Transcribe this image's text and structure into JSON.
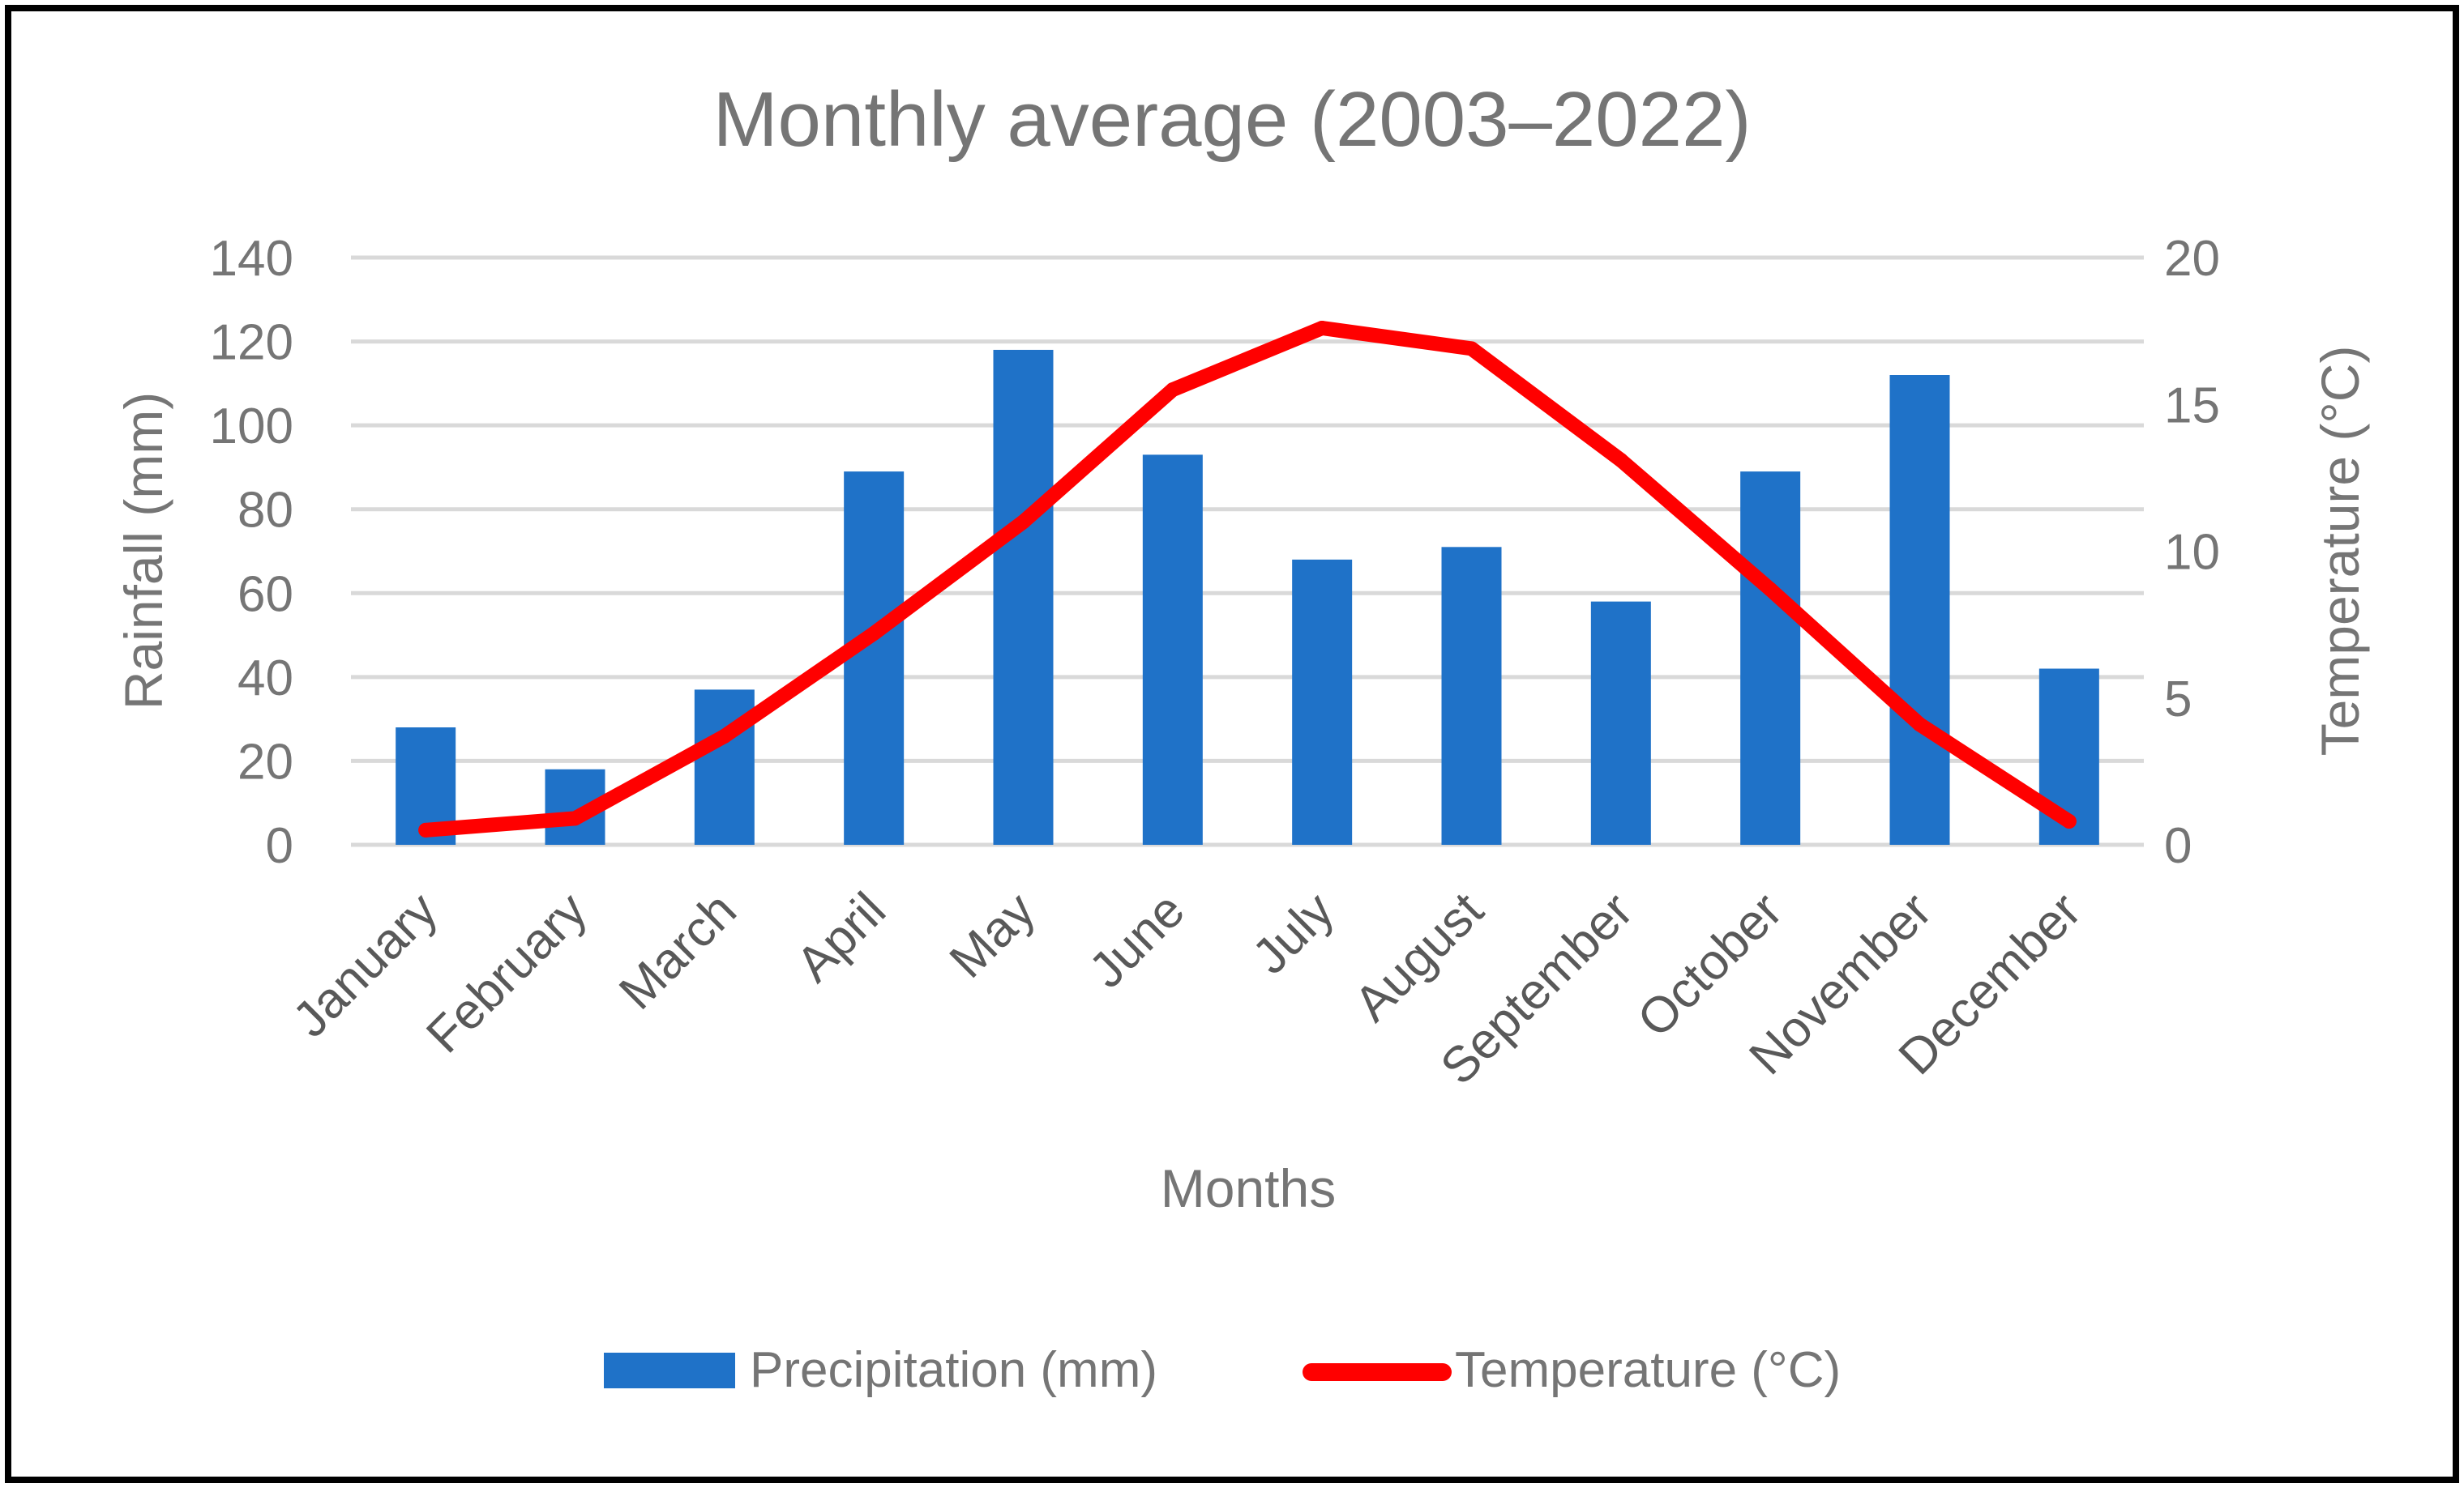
{
  "chart_data": {
    "type": "bar",
    "title": "Monthly average (2003–2022)",
    "xlabel": "Months",
    "ylabel": "Rainfall (mm)",
    "y2label": "Temperature (°C)",
    "categories": [
      "January",
      "February",
      "March",
      "April",
      "May",
      "June",
      "July",
      "August",
      "September",
      "October",
      "November",
      "December"
    ],
    "ylim": [
      0,
      140
    ],
    "yticks": [
      "0",
      "20",
      "40",
      "60",
      "80",
      "100",
      "120",
      "140"
    ],
    "y2lim": [
      0,
      20
    ],
    "y2ticks": [
      "0",
      "5",
      "10",
      "15",
      "20"
    ],
    "grid": true,
    "legend_position": "bottom",
    "series": [
      {
        "name": "Precipitation (mm)",
        "type": "bar",
        "axis": "left",
        "color": "#1f72c8",
        "values": [
          28,
          18,
          37,
          89,
          118,
          93,
          68,
          71,
          58,
          89,
          112,
          42
        ]
      },
      {
        "name": "Temperature (°C)",
        "type": "line",
        "axis": "right",
        "color": "#ff0000",
        "values": [
          0.5,
          0.9,
          3.7,
          7.2,
          11.0,
          15.5,
          17.6,
          16.9,
          13.1,
          8.7,
          4.1,
          0.8
        ]
      }
    ]
  }
}
